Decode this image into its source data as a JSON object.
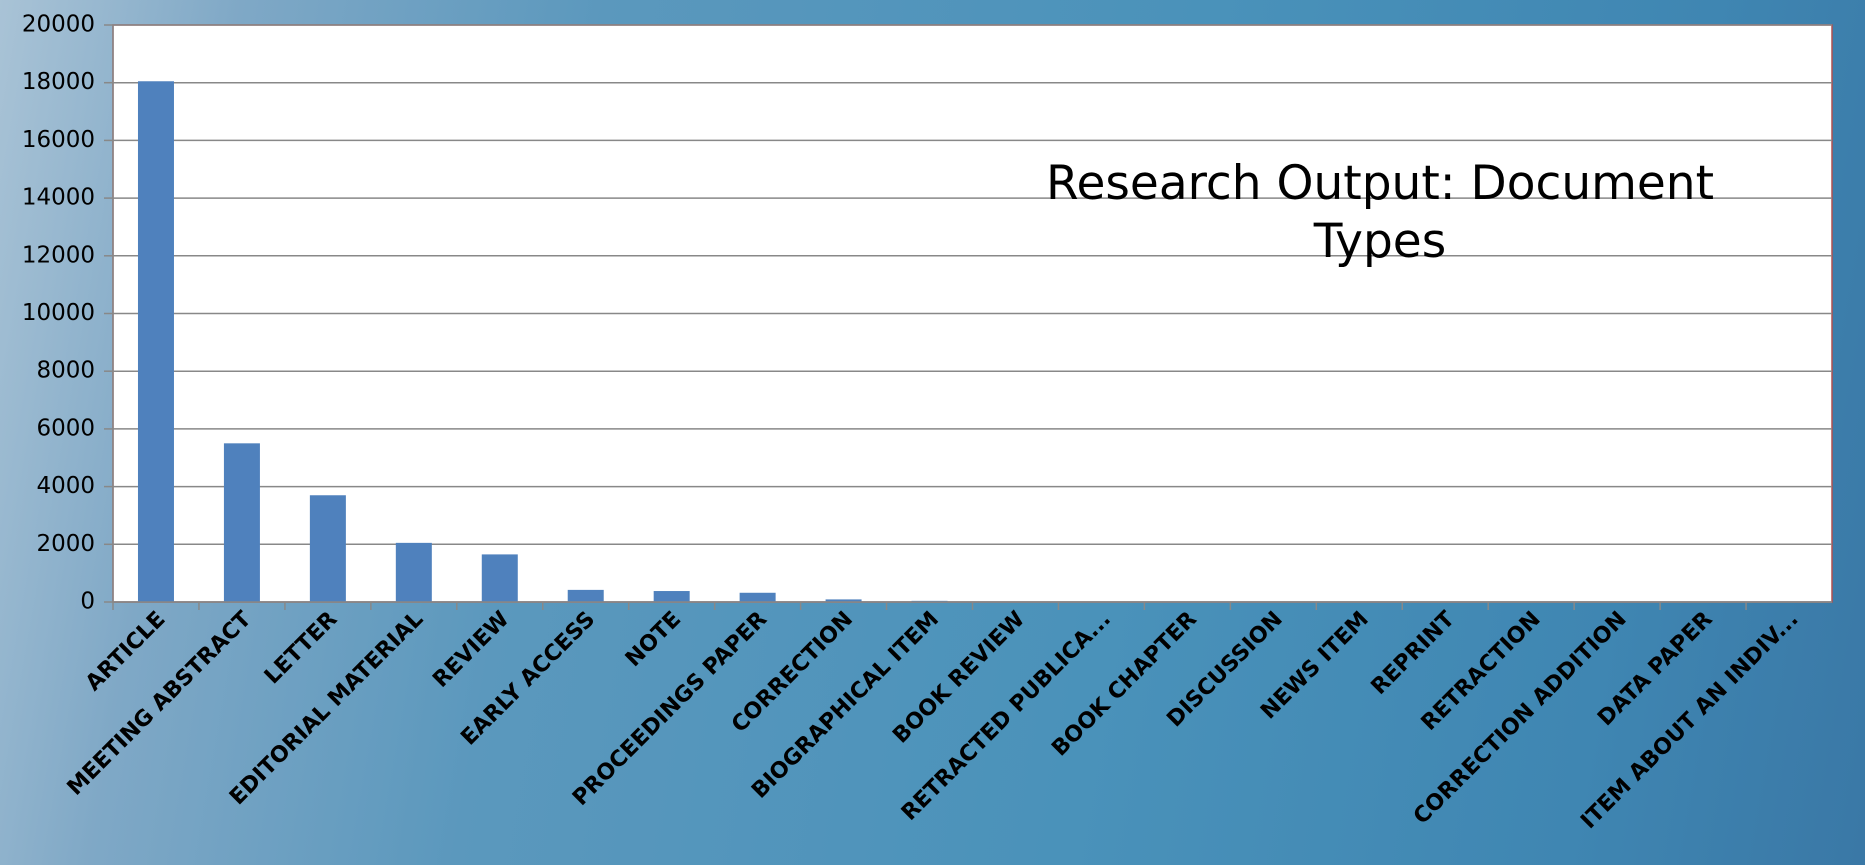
{
  "chart_data": {
    "type": "bar",
    "title": "Research Output: Document Types",
    "categories": [
      "ARTICLE",
      "MEETING ABSTRACT",
      "LETTER",
      "EDITORIAL MATERIAL",
      "REVIEW",
      "EARLY ACCESS",
      "NOTE",
      "PROCEEDINGS PAPER",
      "CORRECTION",
      "BIOGRAPHICAL ITEM",
      "BOOK REVIEW",
      "RETRACTED PUBLICA...",
      "BOOK CHAPTER",
      "DISCUSSION",
      "NEWS ITEM",
      "REPRINT",
      "RETRACTION",
      "CORRECTION ADDITION",
      "DATA PAPER",
      "ITEM ABOUT AN INDIV..."
    ],
    "values": [
      18050,
      5500,
      3700,
      2050,
      1650,
      420,
      380,
      320,
      90,
      40,
      10,
      5,
      4,
      3,
      2,
      2,
      2,
      1,
      1,
      1
    ],
    "color": "#4f81bd",
    "ylim": [
      0,
      20000
    ],
    "yticks": [
      0,
      2000,
      4000,
      6000,
      8000,
      10000,
      12000,
      14000,
      16000,
      18000,
      20000
    ],
    "grid": true
  }
}
